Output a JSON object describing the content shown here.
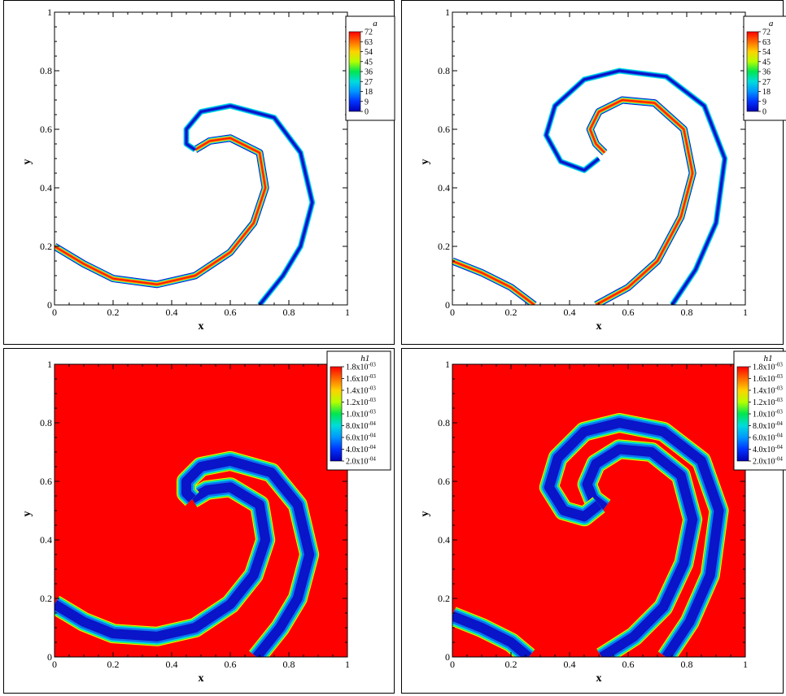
{
  "colors": {
    "plot_background_bottom": "#ff0000",
    "band_dark": "#0a14c8",
    "band_mid": "#0a78f0",
    "band_cyan": "#00e6dc",
    "band_green": "#4be61e",
    "band_yellow": "#ffeb00",
    "band_orange": "#ff8a00",
    "band_red": "#ff1e00"
  },
  "chart_data": [
    {
      "type": "heatmap",
      "panel": "top-left",
      "title": "",
      "xlabel": "x",
      "ylabel": "y",
      "xlim": [
        0,
        1
      ],
      "ylim": [
        0,
        1
      ],
      "x_ticks": [
        "0",
        "0.2",
        "0.4",
        "0.6",
        "0.8",
        "1"
      ],
      "y_ticks": [
        "0",
        "0.2",
        "0.4",
        "0.6",
        "0.8",
        "1"
      ],
      "colorbar": {
        "title": "a",
        "levels": [
          "72",
          "63",
          "54",
          "45",
          "36",
          "27",
          "18",
          "9",
          "0"
        ],
        "range": [
          0,
          72
        ],
        "placement": "top-right"
      },
      "features": {
        "inner_interface_hot": [
          [
            0.0,
            0.2
          ],
          [
            0.1,
            0.14
          ],
          [
            0.2,
            0.09
          ],
          [
            0.35,
            0.07
          ],
          [
            0.48,
            0.1
          ],
          [
            0.6,
            0.18
          ],
          [
            0.68,
            0.28
          ],
          [
            0.72,
            0.4
          ],
          [
            0.7,
            0.52
          ],
          [
            0.6,
            0.57
          ],
          [
            0.53,
            0.56
          ],
          [
            0.48,
            0.53
          ]
        ],
        "outer_interface_cold": [
          [
            0.7,
            0.0
          ],
          [
            0.78,
            0.1
          ],
          [
            0.84,
            0.2
          ],
          [
            0.88,
            0.35
          ],
          [
            0.84,
            0.52
          ],
          [
            0.75,
            0.64
          ],
          [
            0.6,
            0.68
          ],
          [
            0.5,
            0.66
          ],
          [
            0.45,
            0.6
          ],
          [
            0.45,
            0.55
          ],
          [
            0.48,
            0.53
          ]
        ]
      }
    },
    {
      "type": "heatmap",
      "panel": "top-right",
      "title": "",
      "xlabel": "x",
      "ylabel": "y",
      "xlim": [
        0,
        1
      ],
      "ylim": [
        0,
        1
      ],
      "x_ticks": [
        "0",
        "0.2",
        "0.4",
        "0.6",
        "0.8",
        "1"
      ],
      "y_ticks": [
        "0",
        "0.2",
        "0.4",
        "0.6",
        "0.8",
        "1"
      ],
      "colorbar": {
        "title": "a",
        "levels": [
          "72",
          "63",
          "54",
          "45",
          "36",
          "27",
          "18",
          "9",
          "0"
        ],
        "range": [
          0,
          72
        ],
        "placement": "top-right"
      },
      "features": {
        "left_segment_hot": [
          [
            0.0,
            0.15
          ],
          [
            0.1,
            0.11
          ],
          [
            0.2,
            0.06
          ],
          [
            0.28,
            0.0
          ]
        ],
        "inner_interface_hot": [
          [
            0.49,
            0.0
          ],
          [
            0.6,
            0.06
          ],
          [
            0.7,
            0.15
          ],
          [
            0.78,
            0.3
          ],
          [
            0.82,
            0.45
          ],
          [
            0.79,
            0.6
          ],
          [
            0.69,
            0.69
          ],
          [
            0.58,
            0.7
          ],
          [
            0.5,
            0.66
          ],
          [
            0.47,
            0.6
          ],
          [
            0.49,
            0.55
          ],
          [
            0.52,
            0.52
          ]
        ],
        "outer_interface_cold": [
          [
            0.75,
            0.0
          ],
          [
            0.83,
            0.12
          ],
          [
            0.9,
            0.28
          ],
          [
            0.93,
            0.5
          ],
          [
            0.86,
            0.68
          ],
          [
            0.73,
            0.78
          ],
          [
            0.57,
            0.8
          ],
          [
            0.45,
            0.77
          ],
          [
            0.35,
            0.68
          ],
          [
            0.32,
            0.58
          ],
          [
            0.37,
            0.49
          ],
          [
            0.45,
            0.46
          ],
          [
            0.5,
            0.5
          ]
        ]
      }
    },
    {
      "type": "heatmap",
      "panel": "bottom-left",
      "title": "",
      "xlabel": "x",
      "ylabel": "y",
      "xlim": [
        0,
        1
      ],
      "ylim": [
        0,
        1
      ],
      "x_ticks": [
        "0",
        "0.2",
        "0.4",
        "0.6",
        "0.8",
        "1"
      ],
      "y_ticks": [
        "0",
        "0.2",
        "0.4",
        "0.6",
        "0.8",
        "1"
      ],
      "colorbar": {
        "title": "h1",
        "levels": [
          {
            "mantissa": "1.8x10",
            "exp": "-03"
          },
          {
            "mantissa": "1.6x10",
            "exp": "-03"
          },
          {
            "mantissa": "1.4x10",
            "exp": "-03"
          },
          {
            "mantissa": "1.2x10",
            "exp": "-03"
          },
          {
            "mantissa": "1.0x10",
            "exp": "-03"
          },
          {
            "mantissa": "8.0x10",
            "exp": "-04"
          },
          {
            "mantissa": "6.0x10",
            "exp": "-04"
          },
          {
            "mantissa": "4.0x10",
            "exp": "-04"
          },
          {
            "mantissa": "2.0x10",
            "exp": "-04"
          }
        ],
        "range": [
          0.0002,
          0.0018
        ],
        "placement": "top-right"
      },
      "features": {
        "band_lower": [
          [
            0.0,
            0.18
          ],
          [
            0.1,
            0.12
          ],
          [
            0.2,
            0.08
          ],
          [
            0.35,
            0.07
          ],
          [
            0.48,
            0.1
          ],
          [
            0.6,
            0.18
          ],
          [
            0.68,
            0.28
          ],
          [
            0.72,
            0.4
          ],
          [
            0.7,
            0.52
          ],
          [
            0.6,
            0.58
          ],
          [
            0.52,
            0.57
          ],
          [
            0.47,
            0.54
          ]
        ],
        "band_upper": [
          [
            0.69,
            0.0
          ],
          [
            0.77,
            0.1
          ],
          [
            0.83,
            0.2
          ],
          [
            0.87,
            0.35
          ],
          [
            0.83,
            0.52
          ],
          [
            0.74,
            0.63
          ],
          [
            0.6,
            0.67
          ],
          [
            0.5,
            0.65
          ],
          [
            0.45,
            0.6
          ],
          [
            0.45,
            0.56
          ],
          [
            0.47,
            0.54
          ]
        ]
      }
    },
    {
      "type": "heatmap",
      "panel": "bottom-right",
      "title": "",
      "xlabel": "x",
      "ylabel": "y",
      "xlim": [
        0,
        1
      ],
      "ylim": [
        0,
        1
      ],
      "x_ticks": [
        "0",
        "0.2",
        "0.4",
        "0.6",
        "0.8",
        "1"
      ],
      "y_ticks": [
        "0",
        "0.2",
        "0.4",
        "0.6",
        "0.8",
        "1"
      ],
      "colorbar": {
        "title": "h1",
        "levels": [
          {
            "mantissa": "1.8x10",
            "exp": "-03"
          },
          {
            "mantissa": "1.6x10",
            "exp": "-03"
          },
          {
            "mantissa": "1.4x10",
            "exp": "-03"
          },
          {
            "mantissa": "1.2x10",
            "exp": "-03"
          },
          {
            "mantissa": "1.0x10",
            "exp": "-03"
          },
          {
            "mantissa": "8.0x10",
            "exp": "-04"
          },
          {
            "mantissa": "6.0x10",
            "exp": "-04"
          },
          {
            "mantissa": "4.0x10",
            "exp": "-04"
          },
          {
            "mantissa": "2.0x10",
            "exp": "-04"
          }
        ],
        "range": [
          0.0002,
          0.0018
        ],
        "placement": "top-right"
      },
      "features": {
        "band_left": [
          [
            0.0,
            0.14
          ],
          [
            0.1,
            0.1
          ],
          [
            0.2,
            0.05
          ],
          [
            0.26,
            0.0
          ]
        ],
        "band_inner": [
          [
            0.51,
            0.0
          ],
          [
            0.62,
            0.07
          ],
          [
            0.72,
            0.17
          ],
          [
            0.79,
            0.32
          ],
          [
            0.82,
            0.47
          ],
          [
            0.78,
            0.62
          ],
          [
            0.68,
            0.7
          ],
          [
            0.57,
            0.71
          ],
          [
            0.49,
            0.66
          ],
          [
            0.46,
            0.59
          ],
          [
            0.48,
            0.54
          ],
          [
            0.52,
            0.51
          ]
        ],
        "band_outer": [
          [
            0.73,
            0.0
          ],
          [
            0.81,
            0.12
          ],
          [
            0.88,
            0.28
          ],
          [
            0.91,
            0.5
          ],
          [
            0.85,
            0.67
          ],
          [
            0.72,
            0.77
          ],
          [
            0.57,
            0.8
          ],
          [
            0.45,
            0.77
          ],
          [
            0.36,
            0.68
          ],
          [
            0.33,
            0.58
          ],
          [
            0.38,
            0.5
          ],
          [
            0.45,
            0.48
          ],
          [
            0.5,
            0.52
          ]
        ]
      }
    }
  ]
}
